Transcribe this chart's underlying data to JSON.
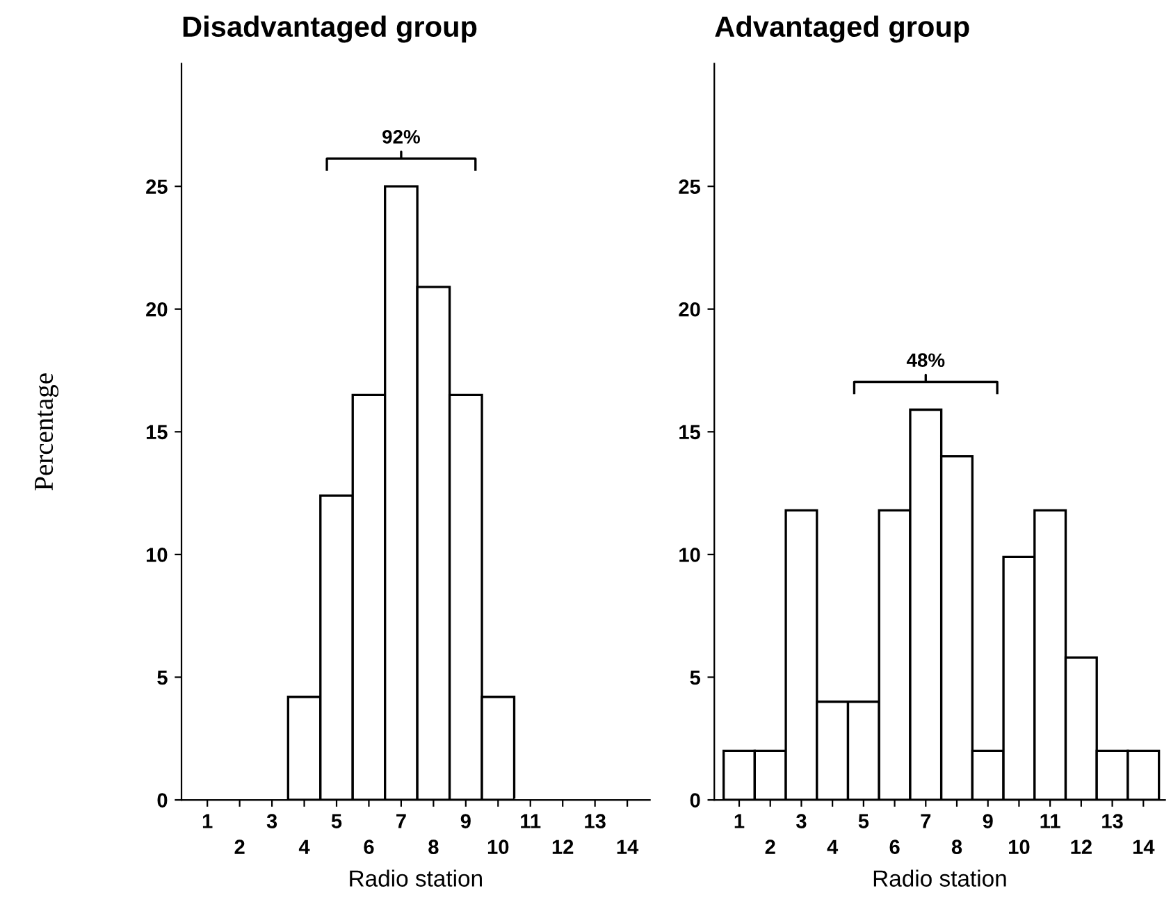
{
  "chart_data": [
    {
      "type": "bar",
      "title": "Disadvantaged group",
      "xlabel": "Radio station",
      "ylabel": "Percentage",
      "categories": [
        "1",
        "2",
        "3",
        "4",
        "5",
        "6",
        "7",
        "8",
        "9",
        "10",
        "11",
        "12",
        "13",
        "14"
      ],
      "values": [
        0,
        0,
        0,
        4.2,
        12.4,
        16.5,
        25,
        20.9,
        16.5,
        4.2,
        0,
        0,
        0,
        0
      ],
      "color": "#ffffff",
      "ylim": [
        0,
        30
      ],
      "yticks": [
        0,
        5,
        10,
        15,
        20,
        25
      ],
      "grid": false,
      "legend": false,
      "annotations": [
        "92%"
      ]
    },
    {
      "type": "bar",
      "title": "Advantaged group",
      "xlabel": "Radio station",
      "categories": [
        "1",
        "2",
        "3",
        "4",
        "5",
        "6",
        "7",
        "8",
        "9",
        "10",
        "11",
        "12",
        "13",
        "14"
      ],
      "values": [
        2,
        2,
        11.8,
        4,
        4,
        11.8,
        15.9,
        14,
        2,
        9.9,
        11.8,
        5.8,
        2,
        2
      ],
      "color": "#ffffff",
      "ylim": [
        0,
        30
      ],
      "yticks": [
        0,
        5,
        10,
        15,
        20,
        25
      ],
      "grid": false,
      "legend": false,
      "annotations": [
        "48%"
      ]
    }
  ]
}
